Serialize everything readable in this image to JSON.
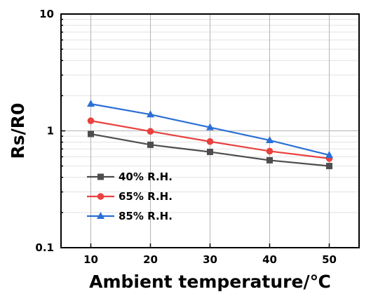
{
  "chart_data": {
    "type": "line",
    "xlabel": "Ambient temperature/℃",
    "ylabel": "Rs/R0",
    "x": [
      10,
      20,
      30,
      40,
      50
    ],
    "xlim": [
      5,
      55
    ],
    "xticks": [
      "10",
      "20",
      "30",
      "40",
      "50"
    ],
    "yscale": "log",
    "ylim": [
      0.1,
      10
    ],
    "yticks": [
      "0.1",
      "1",
      "10"
    ],
    "grid": true,
    "legend_position": "bottom-left",
    "series": [
      {
        "name": "40% R.H.",
        "marker": "square",
        "color": "#4d4d4d",
        "values": [
          0.94,
          0.76,
          0.66,
          0.56,
          0.5
        ]
      },
      {
        "name": "65% R.H.",
        "marker": "circle",
        "color": "#e8413e",
        "values": [
          1.22,
          0.99,
          0.81,
          0.67,
          0.58
        ]
      },
      {
        "name": "85% R.H.",
        "marker": "triangle",
        "color": "#2b6fd6",
        "values": [
          1.7,
          1.38,
          1.07,
          0.83,
          0.62
        ]
      }
    ]
  }
}
